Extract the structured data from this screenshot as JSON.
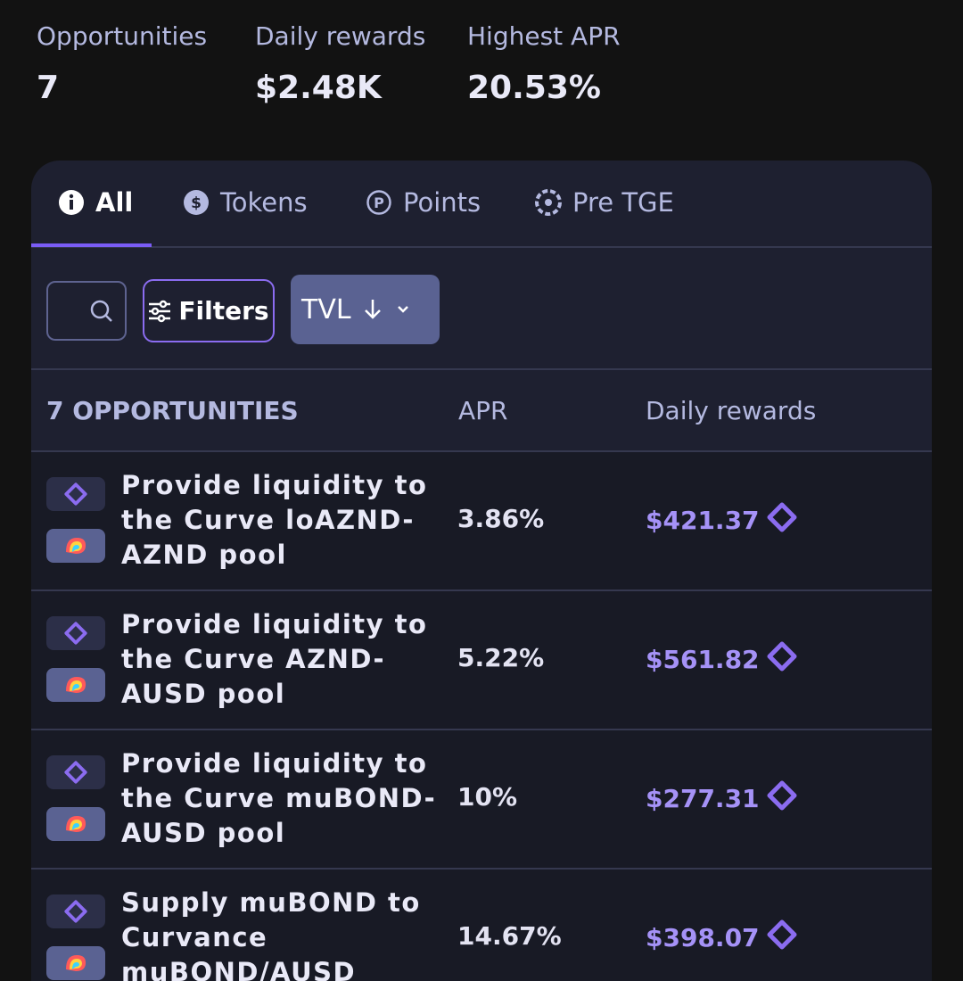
{
  "stats": [
    {
      "label": "Opportunities",
      "value": "7"
    },
    {
      "label": "Daily rewards",
      "value": "$2.48K"
    },
    {
      "label": "Highest APR",
      "value": "20.53%"
    }
  ],
  "tabs": [
    "All",
    "Tokens",
    "Points",
    "Pre TGE"
  ],
  "toolbar": {
    "filters": "Filters",
    "sort": "TVL"
  },
  "table": {
    "header": [
      "7 OPPORTUNITIES",
      "APR",
      "Daily rewards"
    ],
    "rows": [
      [
        "Provide liquidity to the Curve loAZND-AZND pool",
        "3.86%",
        "$421.37"
      ],
      [
        "Provide liquidity to the Curve AZND-AUSD pool",
        "5.22%",
        "$561.82"
      ],
      [
        "Provide liquidity to the Curve muBOND-AUSD pool",
        "10%",
        "$277.31"
      ],
      [
        "Supply muBOND to Curvance muBOND/AUSD",
        "14.67%",
        "$398.07"
      ]
    ]
  }
}
